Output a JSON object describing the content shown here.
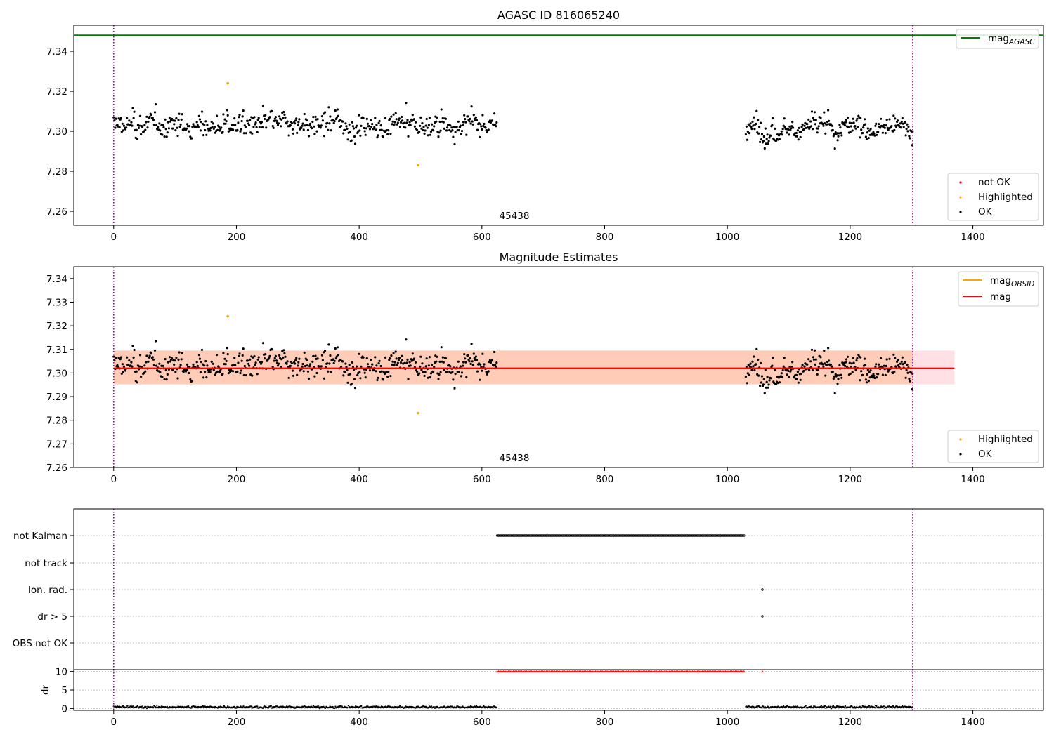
{
  "chart_data": [
    {
      "type": "scatter",
      "panel": "top",
      "title": "AGASC ID 816065240",
      "xlabel": "",
      "ylabel": "",
      "xlim": [
        -65,
        1515
      ],
      "ylim": [
        7.253,
        7.353
      ],
      "xticks": [
        0,
        200,
        400,
        600,
        800,
        1000,
        1200,
        1400
      ],
      "yticks": [
        7.26,
        7.28,
        7.3,
        7.32,
        7.34
      ],
      "ytick_labels": [
        "7.26",
        "7.28",
        "7.30",
        "7.32",
        "7.34"
      ],
      "annotation": "45438",
      "vlines": [
        0,
        1302
      ],
      "hline_mag_agasc": 7.348,
      "legend_upper": {
        "placement": "top-right",
        "entries": [
          {
            "name": "mag",
            "sub": "AGASC",
            "color": "#008000"
          }
        ]
      },
      "legend_lower": {
        "placement": "bottom-right",
        "entries": [
          {
            "name": "not OK",
            "color": "#ff0000"
          },
          {
            "name": "Highlighted",
            "color": "#ffa500"
          },
          {
            "name": "OK",
            "color": "#000000"
          }
        ]
      },
      "highlighted_points": [
        [
          186,
          7.324
        ],
        [
          496,
          7.283
        ]
      ],
      "ok_segments": [
        {
          "x_start": 0,
          "x_end": 625,
          "y_min": 7.284,
          "y_max": 7.321,
          "mean": 7.303
        },
        {
          "x_start": 1030,
          "x_end": 1302,
          "y_min": 7.284,
          "y_max": 7.32,
          "mean": 7.302
        }
      ]
    },
    {
      "type": "scatter",
      "panel": "middle",
      "title": "Magnitude Estimates",
      "xlabel": "",
      "ylabel": "",
      "xlim": [
        -65,
        1515
      ],
      "ylim": [
        7.26,
        7.345
      ],
      "xticks": [
        0,
        200,
        400,
        600,
        800,
        1000,
        1200,
        1400
      ],
      "yticks": [
        7.26,
        7.27,
        7.28,
        7.29,
        7.3,
        7.31,
        7.32,
        7.33,
        7.34
      ],
      "ytick_labels": [
        "7.26",
        "7.27",
        "7.28",
        "7.29",
        "7.30",
        "7.31",
        "7.32",
        "7.33",
        "7.34"
      ],
      "annotation": "45438",
      "vlines": [
        0,
        1302
      ],
      "mag": 7.302,
      "mag_band": [
        7.2952,
        7.3095
      ],
      "mag_line_x": [
        0,
        1370
      ],
      "mag_obsid": 7.302,
      "mag_obsid_band": [
        7.2952,
        7.3095
      ],
      "mag_obsid_x": [
        0,
        1302
      ],
      "legend_upper": {
        "placement": "top-right",
        "entries": [
          {
            "name": "mag",
            "sub": "OBSID",
            "color": "#ffa500"
          },
          {
            "name": "mag",
            "sub": "",
            "color": "#ff0000"
          }
        ]
      },
      "legend_lower": {
        "placement": "bottom-right",
        "entries": [
          {
            "name": "Highlighted",
            "color": "#ffa500"
          },
          {
            "name": "OK",
            "color": "#000000"
          }
        ]
      },
      "highlighted_points": [
        [
          186,
          7.324
        ],
        [
          496,
          7.283
        ]
      ]
    },
    {
      "type": "scatter",
      "panel": "flags",
      "xlim": [
        -65,
        1515
      ],
      "categories": [
        "not Kalman",
        "not track",
        "Ion. rad.",
        "dr > 5",
        "OBS not OK"
      ],
      "flag_points": [
        {
          "category": "not Kalman",
          "x_start": 625,
          "x_end": 1027
        },
        {
          "category": "Ion. rad.",
          "x_start": 1057,
          "x_end": 1057
        },
        {
          "category": "dr > 5",
          "x_start": 1057,
          "x_end": 1057
        }
      ],
      "vlines": [
        0,
        1302
      ]
    },
    {
      "type": "scatter",
      "panel": "dr",
      "ylabel": "dr",
      "xlim": [
        -65,
        1515
      ],
      "ylim": [
        -0.5,
        10.5
      ],
      "xticks": [
        0,
        200,
        400,
        600,
        800,
        1000,
        1200,
        1400
      ],
      "yticks": [
        0,
        5,
        10
      ],
      "ytick_labels": [
        "0",
        "5",
        "10"
      ],
      "clipped_value": 10,
      "clipped_points": [
        {
          "x_start": 625,
          "x_end": 1027
        },
        {
          "x_start": 1057,
          "x_end": 1057
        }
      ],
      "ok_segments": [
        {
          "x_start": 0,
          "x_end": 625,
          "mean": 0.4
        },
        {
          "x_start": 1030,
          "x_end": 1302,
          "mean": 0.4
        }
      ],
      "vlines": [
        0,
        1302
      ]
    }
  ]
}
